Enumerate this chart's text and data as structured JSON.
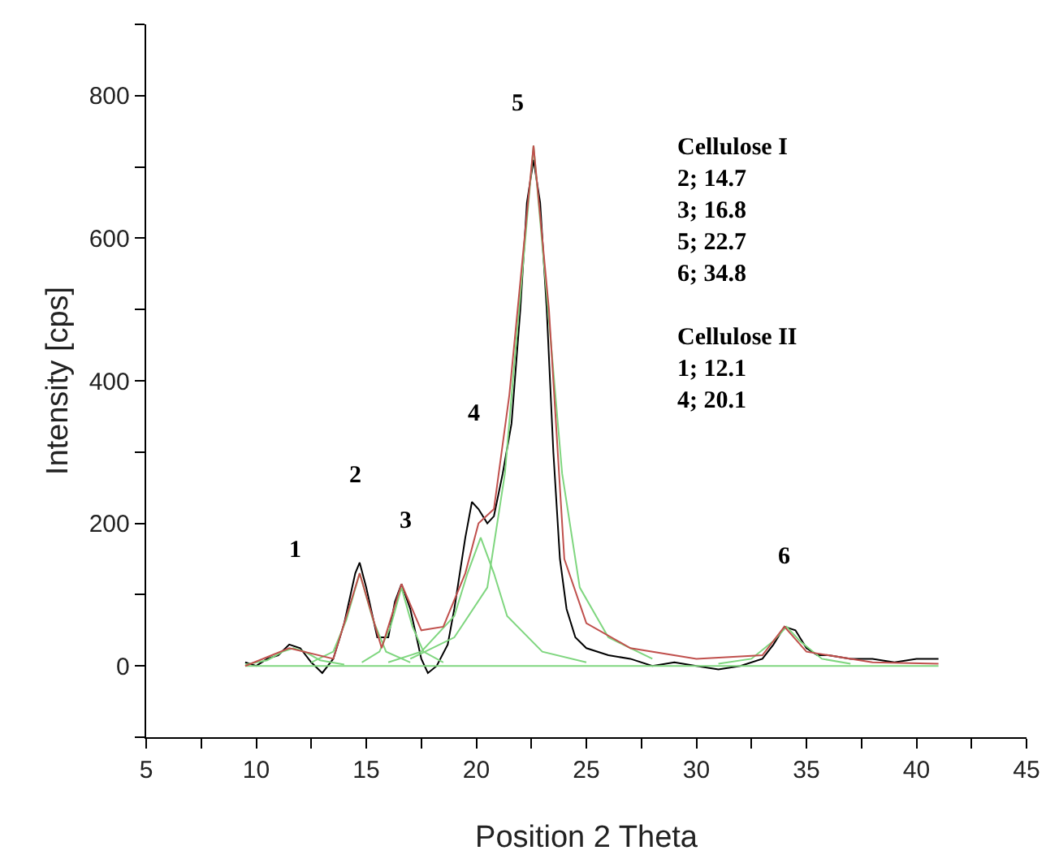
{
  "chart_data": {
    "type": "line",
    "xlabel": "Position 2 Theta",
    "ylabel": "Intensity [cps]",
    "xlim": [
      5,
      45
    ],
    "xticks": [
      5,
      {
        "value": 7.5,
        "label": null
      },
      10,
      {
        "value": 12.5,
        "label": null
      },
      15,
      {
        "value": 17.5,
        "label": null
      },
      20,
      {
        "value": 22.5,
        "label": null
      },
      25,
      {
        "value": 27.5,
        "label": null
      },
      30,
      {
        "value": 32.5,
        "label": null
      },
      35,
      {
        "value": 37.5,
        "label": null
      },
      40,
      {
        "value": 42.5,
        "label": null
      },
      45
    ],
    "ylim": [
      -100,
      900
    ],
    "yticks": [
      {
        "value": -100,
        "label": null
      },
      0,
      {
        "value": 100,
        "label": null
      },
      200,
      {
        "value": 300,
        "label": null
      },
      400,
      {
        "value": 500,
        "label": null
      },
      600,
      {
        "value": 700,
        "label": null
      },
      800,
      {
        "value": 900,
        "label": null
      }
    ],
    "grid": false,
    "marker": "none",
    "line_style": "solid",
    "series": [
      {
        "color": "#000000",
        "x": [
          9.5,
          10,
          10.5,
          11,
          11.5,
          12,
          12.5,
          13,
          13.5,
          14,
          14.5,
          14.7,
          15,
          15.5,
          16,
          16.3,
          16.6,
          17,
          17.5,
          17.8,
          18.2,
          18.7,
          19,
          19.5,
          19.8,
          20.1,
          20.5,
          20.8,
          21.2,
          21.6,
          22,
          22.3,
          22.6,
          22.9,
          23.2,
          23.5,
          23.8,
          24.1,
          24.5,
          25,
          26,
          27,
          28,
          29,
          30,
          31,
          32,
          33,
          33.5,
          34,
          34.5,
          35,
          35.5,
          36,
          37,
          38,
          39,
          40,
          41
        ],
        "values": [
          5,
          0,
          10,
          15,
          30,
          25,
          5,
          -10,
          10,
          60,
          130,
          145,
          110,
          40,
          40,
          90,
          115,
          80,
          10,
          -10,
          0,
          30,
          80,
          180,
          230,
          220,
          200,
          210,
          270,
          340,
          500,
          650,
          710,
          650,
          500,
          300,
          150,
          80,
          40,
          25,
          15,
          10,
          0,
          5,
          0,
          -5,
          0,
          10,
          30,
          55,
          50,
          25,
          15,
          15,
          10,
          10,
          5,
          10,
          10
        ]
      },
      {
        "color": "#7fd67f",
        "x": [
          9.5,
          41
        ],
        "values": [
          0,
          0
        ]
      },
      {
        "color": "#7fd67f",
        "x": [
          9.5,
          10.5,
          11.2,
          11.7,
          12.2,
          12.9,
          14
        ],
        "values": [
          2,
          8,
          20,
          25,
          20,
          8,
          2
        ]
      },
      {
        "color": "#7fd67f",
        "x": [
          12.5,
          13.5,
          14.1,
          14.7,
          15.3,
          15.9,
          17
        ],
        "values": [
          5,
          20,
          65,
          130,
          65,
          20,
          5
        ]
      },
      {
        "color": "#7fd67f",
        "x": [
          14.8,
          15.6,
          16.1,
          16.6,
          17.1,
          17.6,
          18.5
        ],
        "values": [
          5,
          20,
          55,
          110,
          55,
          20,
          5
        ]
      },
      {
        "color": "#7fd67f",
        "x": [
          16,
          17.5,
          19,
          19.6,
          20.2,
          20.8,
          21.4,
          23,
          25
        ],
        "values": [
          5,
          20,
          70,
          130,
          180,
          130,
          70,
          20,
          5
        ]
      },
      {
        "color": "#7fd67f",
        "x": [
          17,
          19,
          20.5,
          21.3,
          21.8,
          22.6,
          23.4,
          23.9,
          24.7,
          26,
          28
        ],
        "values": [
          10,
          40,
          110,
          270,
          450,
          730,
          450,
          270,
          110,
          40,
          10
        ]
      },
      {
        "color": "#7fd67f",
        "x": [
          31,
          32.5,
          33.5,
          34.1,
          34.7,
          35.7,
          37
        ],
        "values": [
          3,
          10,
          35,
          55,
          35,
          10,
          3
        ]
      },
      {
        "color": "#c0504d",
        "x": [
          9.5,
          11.5,
          13.5,
          14.7,
          15.7,
          16.6,
          17.5,
          18.5,
          19.5,
          20.1,
          20.8,
          21.5,
          22.6,
          23.3,
          24,
          25,
          27,
          30,
          33,
          34,
          35,
          38,
          41
        ],
        "values": [
          0,
          25,
          10,
          130,
          25,
          115,
          50,
          55,
          130,
          200,
          220,
          380,
          730,
          500,
          150,
          60,
          25,
          10,
          15,
          55,
          20,
          5,
          3
        ]
      }
    ],
    "annotations": [
      "1",
      "2",
      "3",
      "4",
      "5",
      "6",
      "Cellulose I\n2; 14.7\n3; 16.8\n5; 22.7\n6; 34.8\n\nCellulose II\n1; 12.1\n4; 20.1"
    ]
  }
}
